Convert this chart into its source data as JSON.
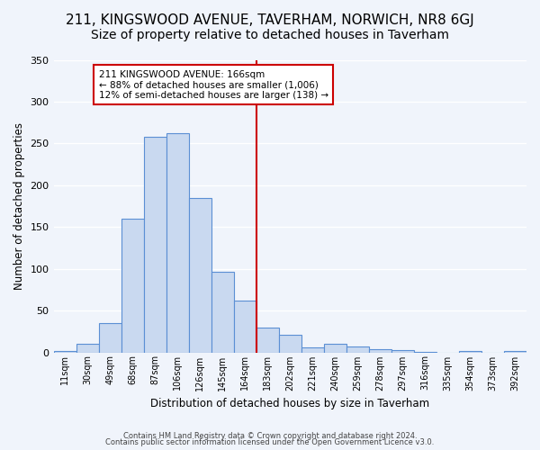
{
  "title": "211, KINGSWOOD AVENUE, TAVERHAM, NORWICH, NR8 6GJ",
  "subtitle": "Size of property relative to detached houses in Taverham",
  "xlabel": "Distribution of detached houses by size in Taverham",
  "ylabel": "Number of detached properties",
  "bar_labels": [
    "11sqm",
    "30sqm",
    "49sqm",
    "68sqm",
    "87sqm",
    "106sqm",
    "126sqm",
    "145sqm",
    "164sqm",
    "183sqm",
    "202sqm",
    "221sqm",
    "240sqm",
    "259sqm",
    "278sqm",
    "297sqm",
    "316sqm",
    "335sqm",
    "354sqm",
    "373sqm",
    "392sqm"
  ],
  "bar_values": [
    2,
    10,
    35,
    160,
    258,
    262,
    185,
    96,
    62,
    30,
    21,
    6,
    10,
    7,
    4,
    3,
    1,
    0,
    2,
    0,
    2
  ],
  "bar_color": "#c9d9f0",
  "bar_edge_color": "#5b8fd4",
  "vline_x": 8.5,
  "vline_color": "#cc0000",
  "annotation_title": "211 KINGSWOOD AVENUE: 166sqm",
  "annotation_line1": "← 88% of detached houses are smaller (1,006)",
  "annotation_line2": "12% of semi-detached houses are larger (138) →",
  "annotation_box_color": "#cc0000",
  "ylim": [
    0,
    350
  ],
  "yticks": [
    0,
    50,
    100,
    150,
    200,
    250,
    300,
    350
  ],
  "footer1": "Contains HM Land Registry data © Crown copyright and database right 2024.",
  "footer2": "Contains public sector information licensed under the Open Government Licence v3.0.",
  "bg_color": "#f0f4fb",
  "grid_color": "#ffffff",
  "title_fontsize": 11,
  "subtitle_fontsize": 10
}
